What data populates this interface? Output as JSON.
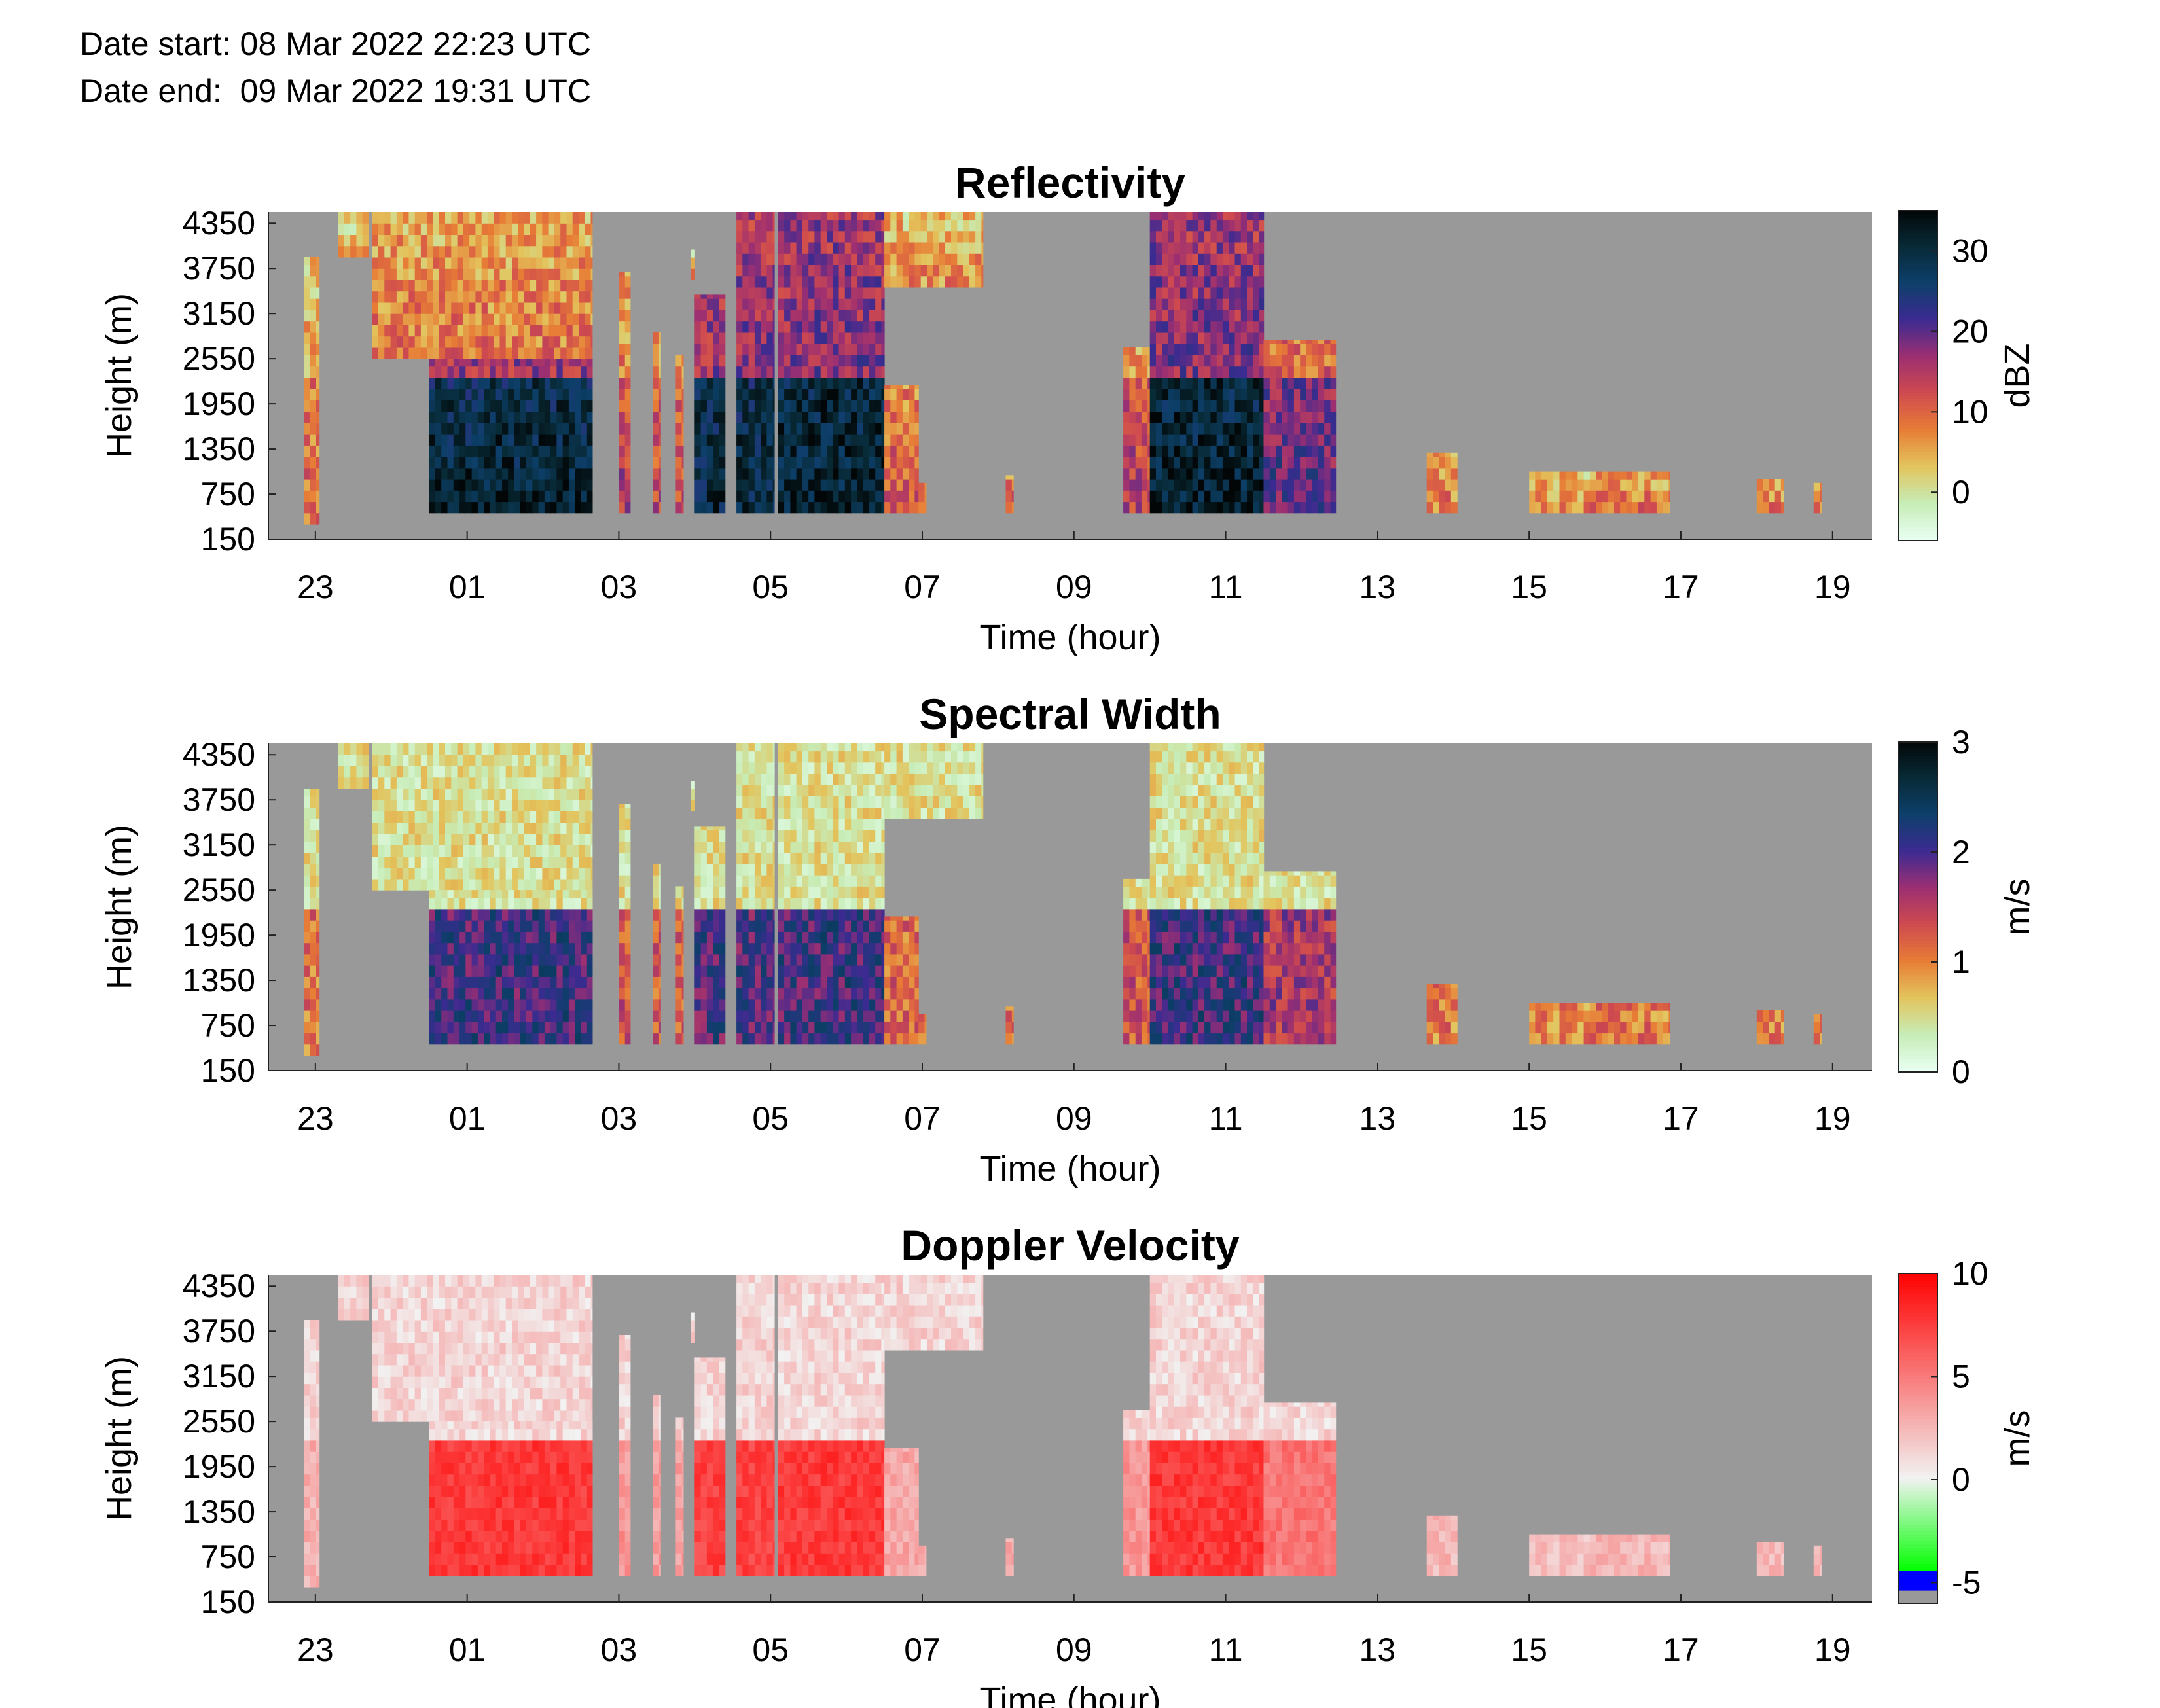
{
  "header": {
    "date_start": "Date start: 08 Mar 2022 22:23 UTC",
    "date_end": "Date end:  09 Mar 2022 19:31 UTC"
  },
  "chart_data": [
    {
      "type": "heatmap",
      "title": "Reflectivity",
      "xlabel": "Time (hour)",
      "ylabel": "Height (m)",
      "x_ticks": [
        "23",
        "01",
        "03",
        "05",
        "07",
        "09",
        "11",
        "13",
        "15",
        "17",
        "19"
      ],
      "y_ticks": [
        "150",
        "750",
        "1350",
        "1950",
        "2550",
        "3150",
        "3750",
        "4350"
      ],
      "xlim_hours_since_22": [
        0.38,
        21.52
      ],
      "ylim_m": [
        150,
        4500
      ],
      "colorbar": {
        "label": "dBZ",
        "ticks": [
          0,
          10,
          20,
          30
        ],
        "range": [
          -6,
          35
        ],
        "colors": [
          "#e8fff2",
          "#c7ecb6",
          "#e3c45c",
          "#e77c36",
          "#cf4a4f",
          "#9b2f72",
          "#3b2b91",
          "#0d3f6a",
          "#082a36",
          "#020607"
        ]
      },
      "background_color": "#999999"
    },
    {
      "type": "heatmap",
      "title": "Spectral Width",
      "xlabel": "Time (hour)",
      "ylabel": "Height (m)",
      "x_ticks": [
        "23",
        "01",
        "03",
        "05",
        "07",
        "09",
        "11",
        "13",
        "15",
        "17",
        "19"
      ],
      "y_ticks": [
        "150",
        "750",
        "1350",
        "1950",
        "2550",
        "3150",
        "3750",
        "4350"
      ],
      "xlim_hours_since_22": [
        0.38,
        21.52
      ],
      "ylim_m": [
        150,
        4500
      ],
      "colorbar": {
        "label": "m/s",
        "ticks": [
          0,
          1,
          2,
          3
        ],
        "range": [
          0,
          3
        ],
        "colors": [
          "#e8fff2",
          "#c7ecb6",
          "#e3c45c",
          "#e77c36",
          "#cf4a4f",
          "#9b2f72",
          "#3b2b91",
          "#0d3f6a",
          "#082a36",
          "#020607"
        ]
      },
      "background_color": "#999999"
    },
    {
      "type": "heatmap",
      "title": "Doppler Velocity",
      "xlabel": "Time (hour)",
      "ylabel": "Height (m)",
      "x_ticks": [
        "23",
        "01",
        "03",
        "05",
        "07",
        "09",
        "11",
        "13",
        "15",
        "17",
        "19"
      ],
      "y_ticks": [
        "150",
        "750",
        "1350",
        "1950",
        "2550",
        "3150",
        "3750",
        "4350"
      ],
      "xlim_hours_since_22": [
        0.38,
        21.52
      ],
      "ylim_m": [
        150,
        4500
      ],
      "colorbar": {
        "label": "m/s",
        "ticks": [
          -5,
          0,
          5,
          10
        ],
        "range": [
          -6,
          10
        ],
        "colors": [
          "#999999",
          "#0000ff",
          "#00ff00",
          "#f2f2f2",
          "#ff0000"
        ]
      },
      "background_color": "#999999"
    }
  ],
  "echo_segments": [
    {
      "t0": 0.85,
      "t1": 1.05,
      "top": 3900,
      "base": 350,
      "core": 0.25
    },
    {
      "t0": 1.3,
      "t1": 1.7,
      "top": 4500,
      "base": 3900,
      "core": 0.1
    },
    {
      "t0": 1.75,
      "t1": 4.65,
      "top": 4500,
      "base": 2550,
      "core": 0.35
    },
    {
      "t0": 2.5,
      "t1": 4.65,
      "top": 2550,
      "base": 500,
      "core": 0.95
    },
    {
      "t0": 5.0,
      "t1": 5.15,
      "top": 3700,
      "base": 500,
      "core": 0.4
    },
    {
      "t0": 5.45,
      "t1": 5.55,
      "top": 2900,
      "base": 500,
      "core": 0.35
    },
    {
      "t0": 5.75,
      "t1": 5.85,
      "top": 2600,
      "base": 500,
      "core": 0.35
    },
    {
      "t0": 5.95,
      "t1": 6.0,
      "top": 4000,
      "base": 3600,
      "core": 0.2
    },
    {
      "t0": 6.0,
      "t1": 6.4,
      "top": 3400,
      "base": 500,
      "core": 0.9
    },
    {
      "t0": 6.55,
      "t1": 7.05,
      "top": 4500,
      "base": 500,
      "core": 0.9
    },
    {
      "t0": 7.1,
      "t1": 8.5,
      "top": 4500,
      "base": 500,
      "core": 0.95
    },
    {
      "t0": 8.5,
      "t1": 9.8,
      "top": 4500,
      "base": 3500,
      "core": 0.25
    },
    {
      "t0": 8.5,
      "t1": 8.95,
      "top": 2200,
      "base": 500,
      "core": 0.3
    },
    {
      "t0": 8.95,
      "t1": 9.05,
      "top": 900,
      "base": 500,
      "core": 0.3
    },
    {
      "t0": 10.1,
      "t1": 10.2,
      "top": 1000,
      "base": 500,
      "core": 0.3
    },
    {
      "t0": 11.65,
      "t1": 12.0,
      "top": 2700,
      "base": 500,
      "core": 0.4
    },
    {
      "t0": 12.0,
      "t1": 13.5,
      "top": 4500,
      "base": 500,
      "core": 0.95
    },
    {
      "t0": 13.5,
      "t1": 14.45,
      "top": 2800,
      "base": 500,
      "core": 0.6
    },
    {
      "t0": 15.65,
      "t1": 16.05,
      "top": 1300,
      "base": 500,
      "core": 0.2
    },
    {
      "t0": 17.0,
      "t1": 17.8,
      "top": 1050,
      "base": 500,
      "core": 0.15
    },
    {
      "t0": 17.8,
      "t1": 18.85,
      "top": 1050,
      "base": 500,
      "core": 0.2
    },
    {
      "t0": 20.0,
      "t1": 20.35,
      "top": 950,
      "base": 500,
      "core": 0.2
    },
    {
      "t0": 20.75,
      "t1": 20.85,
      "top": 900,
      "base": 500,
      "core": 0.2
    }
  ]
}
